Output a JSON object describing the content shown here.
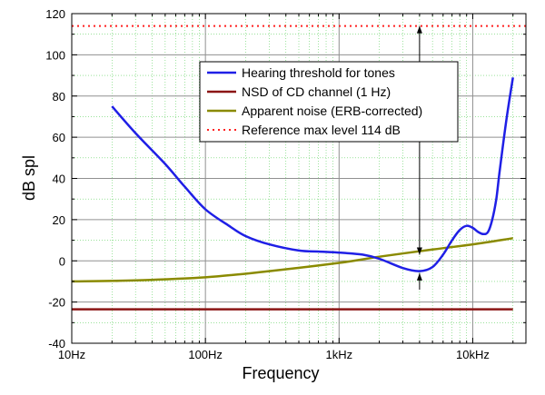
{
  "chart_data": {
    "type": "line",
    "xscale": "log",
    "xlabel": "Frequency",
    "ylabel": "dB spl",
    "xlim": [
      10,
      25000
    ],
    "ylim": [
      -40,
      120
    ],
    "grid": true,
    "legend_position": "top-right",
    "x_ticks": [
      {
        "value": 10,
        "label": "10Hz"
      },
      {
        "value": 100,
        "label": "100Hz"
      },
      {
        "value": 1000,
        "label": "1kHz"
      },
      {
        "value": 10000,
        "label": "10kHz"
      }
    ],
    "y_ticks": [
      -40,
      -20,
      0,
      20,
      40,
      60,
      80,
      100,
      120
    ],
    "series": [
      {
        "name": "Hearing threshold for tones",
        "color": "#1f1fe6",
        "style": "solid",
        "x": [
          20,
          30,
          50,
          70,
          100,
          150,
          200,
          300,
          500,
          700,
          1000,
          1500,
          2000,
          3000,
          4000,
          5000,
          6000,
          7000,
          8000,
          9000,
          10000,
          11000,
          12000,
          13000,
          14000,
          15000,
          16000,
          18000,
          20000
        ],
        "y": [
          75,
          62,
          47,
          36,
          25,
          17,
          12,
          8,
          5,
          4.5,
          4,
          3,
          1,
          -3.5,
          -5,
          -3,
          3,
          10,
          15,
          17,
          16,
          14,
          13,
          14,
          20,
          30,
          45,
          70,
          89
        ]
      },
      {
        "name": "NSD of CD channel (1 Hz)",
        "color": "#8b1515",
        "style": "solid",
        "x": [
          10,
          20000
        ],
        "y": [
          -23.5,
          -23.5
        ]
      },
      {
        "name": "Apparent noise (ERB-corrected)",
        "color": "#8a8a00",
        "style": "solid",
        "x": [
          10,
          30,
          100,
          300,
          1000,
          2000,
          5000,
          10000,
          20000
        ],
        "y": [
          -10,
          -9.5,
          -8,
          -5,
          -1,
          2,
          5.5,
          8,
          11
        ]
      },
      {
        "name": "Reference max level 114 dB",
        "color": "#ff2020",
        "style": "dotted",
        "x": [
          10,
          25000
        ],
        "y": [
          114,
          114
        ]
      }
    ],
    "annotations": [
      {
        "type": "double-arrow",
        "x": 4000,
        "y_from": 3,
        "y_to": 114
      },
      {
        "type": "arrow-up",
        "x": 4000,
        "y_from": -14,
        "y_to": -6
      }
    ]
  }
}
